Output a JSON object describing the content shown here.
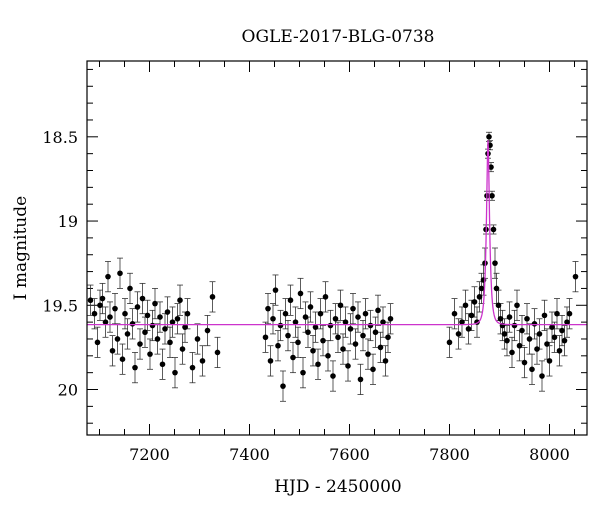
{
  "chart_data": {
    "type": "scatter",
    "title": "OGLE-2017-BLG-0738",
    "xlabel": "HJD - 2450000",
    "ylabel": "I magnitude",
    "xlim": [
      7075,
      8075
    ],
    "ylim": [
      20.27,
      18.05
    ],
    "y_inverted": true,
    "xticks": [
      7200,
      7400,
      7600,
      7800,
      8000
    ],
    "xtick_labels": [
      "7200",
      "7400",
      "7600",
      "7800",
      "8000"
    ],
    "yticks": [
      18.5,
      19,
      19.5,
      20
    ],
    "ytick_labels": [
      "18.5",
      "19",
      "19.5",
      "20"
    ],
    "grid": false,
    "point_color": "#000000",
    "model_color": "#cc33cc",
    "series": [
      {
        "kind": "observations",
        "x": [
          7082,
          7090,
          7096,
          7101,
          7106,
          7112,
          7117,
          7121,
          7126,
          7131,
          7136,
          7141,
          7146,
          7151,
          7156,
          7161,
          7166,
          7171,
          7176,
          7181,
          7186,
          7191,
          7196,
          7201,
          7206,
          7211,
          7216,
          7221,
          7226,
          7231,
          7236,
          7241,
          7246,
          7251,
          7256,
          7261,
          7266,
          7271,
          7276,
          7286,
          7296,
          7306,
          7316,
          7326,
          7336,
          7432,
          7437,
          7442,
          7447,
          7452,
          7457,
          7462,
          7467,
          7472,
          7477,
          7482,
          7487,
          7492,
          7497,
          7502,
          7507,
          7512,
          7517,
          7522,
          7527,
          7532,
          7537,
          7542,
          7547,
          7552,
          7557,
          7562,
          7567,
          7572,
          7577,
          7582,
          7587,
          7592,
          7597,
          7602,
          7607,
          7612,
          7617,
          7622,
          7627,
          7632,
          7637,
          7642,
          7647,
          7652,
          7657,
          7662,
          7667,
          7672,
          7677,
          7682,
          7800,
          7810,
          7818,
          7825,
          7832,
          7838,
          7844,
          7850,
          7855,
          7860,
          7864,
          7868,
          7871,
          7873,
          7875,
          7877,
          7879,
          7881,
          7883,
          7885,
          7888,
          7891,
          7894,
          7898,
          7902,
          7906,
          7910,
          7915,
          7920,
          7925,
          7930,
          7935,
          7940,
          7945,
          7950,
          7955,
          7960,
          7965,
          7970,
          7975,
          7980,
          7985,
          7990,
          7995,
          8000,
          8005,
          8010,
          8015,
          8020,
          8025,
          8030,
          8035,
          8040,
          8052
        ],
        "y": [
          19.47,
          19.55,
          19.72,
          19.5,
          19.46,
          19.6,
          19.33,
          19.57,
          19.77,
          19.52,
          19.7,
          19.31,
          19.82,
          19.55,
          19.67,
          19.4,
          19.61,
          19.87,
          19.51,
          19.73,
          19.46,
          19.66,
          19.56,
          19.79,
          19.62,
          19.49,
          19.7,
          19.57,
          19.85,
          19.64,
          19.54,
          19.72,
          19.6,
          19.9,
          19.58,
          19.47,
          19.76,
          19.63,
          19.55,
          19.87,
          19.7,
          19.83,
          19.65,
          19.45,
          19.78,
          19.69,
          19.52,
          19.83,
          19.58,
          19.41,
          19.74,
          19.62,
          19.98,
          19.55,
          19.68,
          19.47,
          19.81,
          19.6,
          19.72,
          19.43,
          19.9,
          19.57,
          19.66,
          19.51,
          19.77,
          19.63,
          19.85,
          19.55,
          19.71,
          19.45,
          19.8,
          19.62,
          19.92,
          19.58,
          19.69,
          19.5,
          19.76,
          19.6,
          19.86,
          19.64,
          19.52,
          19.73,
          19.57,
          19.94,
          19.68,
          19.55,
          19.79,
          19.62,
          19.88,
          19.66,
          19.53,
          19.75,
          19.6,
          19.83,
          19.69,
          19.58,
          19.72,
          19.55,
          19.67,
          19.6,
          19.5,
          19.64,
          19.56,
          19.48,
          19.6,
          19.45,
          19.4,
          19.35,
          19.25,
          19.05,
          18.85,
          18.6,
          18.5,
          18.55,
          18.68,
          18.85,
          19.05,
          19.25,
          19.4,
          19.5,
          19.58,
          19.62,
          19.67,
          19.71,
          19.57,
          19.78,
          19.62,
          19.5,
          19.74,
          19.65,
          19.84,
          19.58,
          19.7,
          19.88,
          19.61,
          19.76,
          19.67,
          19.92,
          19.56,
          19.73,
          19.83,
          19.63,
          19.69,
          19.55,
          19.77,
          19.65,
          19.71,
          19.6,
          19.55,
          19.33
        ],
        "yerr": 0.09
      },
      {
        "kind": "model",
        "baseline": 19.615,
        "peak_mag": 18.52,
        "t0": 7877,
        "tE": 6
      }
    ]
  }
}
